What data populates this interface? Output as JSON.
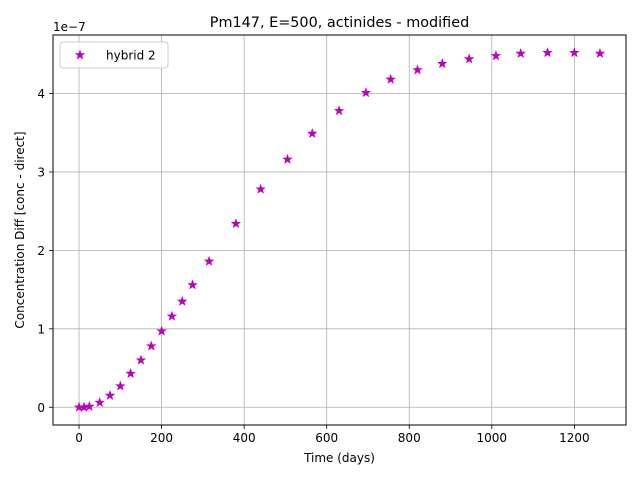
{
  "chart_data": {
    "type": "scatter",
    "title": "Pm147, E=500, actinides - modified",
    "xlabel": "Time (days)",
    "ylabel": "Concentration Diff [conc - direct]",
    "y_offset_label": "1e−7",
    "y_scale": 1e-07,
    "xlim": [
      -63.1,
      1325.1
    ],
    "ylim": [
      -0.226,
      4.746
    ],
    "x_ticks": [
      0,
      200,
      400,
      600,
      800,
      1000,
      1200
    ],
    "y_ticks": [
      0,
      1,
      2,
      3,
      4
    ],
    "grid": true,
    "legend_position": "upper-left",
    "marker": "star",
    "series": [
      {
        "name": "hybrid 2",
        "color": "#bf00bf",
        "x": [
          0,
          12,
          25,
          50,
          75,
          100,
          125,
          150,
          175,
          200,
          225,
          250,
          275,
          315,
          380,
          440,
          505,
          565,
          630,
          695,
          755,
          820,
          880,
          945,
          1010,
          1070,
          1135,
          1200,
          1262
        ],
        "y": [
          0.0,
          0.0,
          0.01,
          0.06,
          0.15,
          0.27,
          0.43,
          0.6,
          0.78,
          0.97,
          1.16,
          1.35,
          1.56,
          1.86,
          2.34,
          2.78,
          3.16,
          3.49,
          3.78,
          4.01,
          4.18,
          4.3,
          4.38,
          4.44,
          4.48,
          4.51,
          4.52,
          4.52,
          4.51
        ]
      }
    ]
  }
}
